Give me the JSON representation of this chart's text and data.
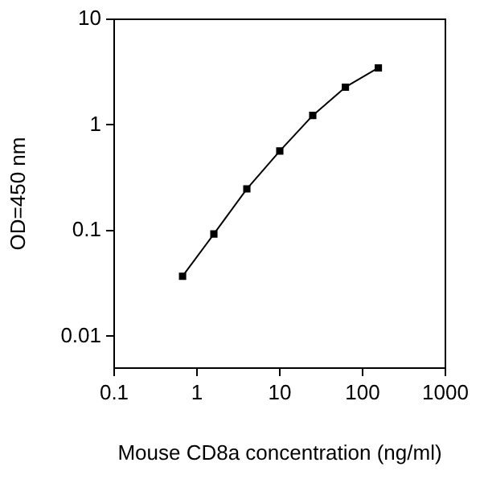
{
  "chart_data": {
    "type": "line",
    "xlabel": "Mouse CD8a concentration (ng/ml)",
    "ylabel": "OD=450 nm",
    "x": [
      0.67,
      1.6,
      4.0,
      10,
      25,
      62,
      155
    ],
    "series": [
      {
        "color": "#000000",
        "values": [
          0.037,
          0.093,
          0.248,
          0.567,
          1.23,
          2.28,
          3.47
        ]
      }
    ],
    "log": "xy",
    "xlim": [
      0.1,
      1000
    ],
    "ylim": [
      0.005,
      10
    ],
    "xticks": [
      0.1,
      1,
      10,
      100,
      1000
    ],
    "yticks": [
      0.01,
      0.1,
      1,
      10
    ],
    "marker": "square",
    "line_style": "solid",
    "legend": false
  }
}
